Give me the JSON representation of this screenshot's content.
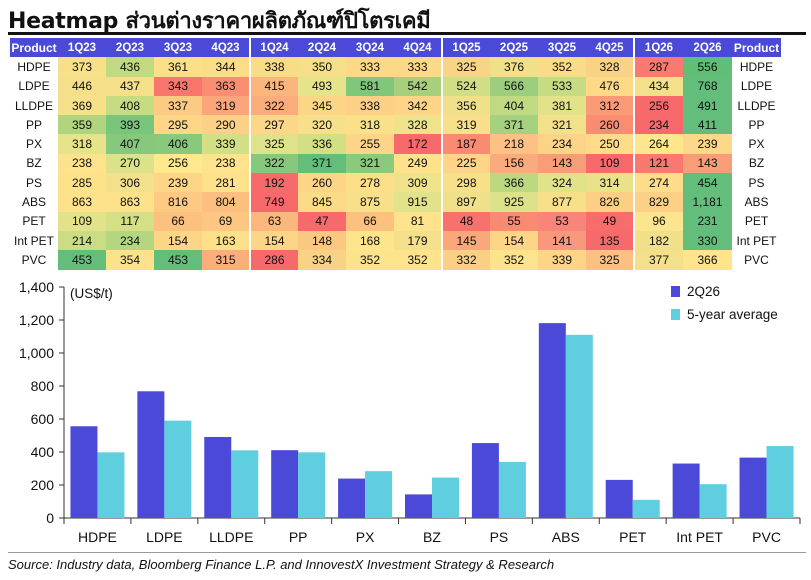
{
  "title": "Heatmap ส่วนต่างราคาผลิตภัณฑ์ปิโตรเคมี",
  "heatmap": {
    "product_header": "Product",
    "quarters": [
      "1Q23",
      "2Q23",
      "3Q23",
      "4Q23",
      "1Q24",
      "2Q24",
      "3Q24",
      "4Q24",
      "1Q25",
      "2Q25",
      "3Q25",
      "4Q25",
      "1Q26",
      "2Q26"
    ],
    "rows": [
      {
        "product": "HDPE",
        "values": [
          "373",
          "436",
          "361",
          "344",
          "338",
          "350",
          "333",
          "333",
          "325",
          "376",
          "352",
          "328",
          "287",
          "556"
        ],
        "colors": [
          "#f7e08a",
          "#c1d980",
          "#f9e089",
          "#fbdc87",
          "#f9dc88",
          "#f6df89",
          "#fcd986",
          "#fcd986",
          "#f8d586",
          "#f1e08a",
          "#f9dc88",
          "#f8d285",
          "#f97a6e",
          "#5ebf75"
        ]
      },
      {
        "product": "LDPE",
        "values": [
          "446",
          "437",
          "343",
          "363",
          "415",
          "493",
          "581",
          "542",
          "524",
          "566",
          "533",
          "476",
          "434",
          "768"
        ],
        "colors": [
          "#f5df89",
          "#f6df89",
          "#f8766c",
          "#fa8e72",
          "#fcb67d",
          "#e6e38b",
          "#7fc77b",
          "#a7d07d",
          "#d2de84",
          "#9cce7e",
          "#c6dc82",
          "#fdd988",
          "#f3e08a",
          "#63be7b"
        ]
      },
      {
        "product": "LLDPE",
        "values": [
          "369",
          "408",
          "337",
          "319",
          "322",
          "345",
          "338",
          "342",
          "356",
          "404",
          "381",
          "312",
          "256",
          "491"
        ],
        "colors": [
          "#f6e08a",
          "#c7dc82",
          "#fbca83",
          "#fba57a",
          "#fbac7c",
          "#fcd686",
          "#fcd086",
          "#fed588",
          "#f1e08a",
          "#bfda81",
          "#e2e28a",
          "#fa9b76",
          "#f8696b",
          "#63be7b"
        ]
      },
      {
        "product": "PP",
        "values": [
          "359",
          "393",
          "295",
          "290",
          "297",
          "320",
          "318",
          "328",
          "319",
          "371",
          "321",
          "260",
          "234",
          "411"
        ],
        "colors": [
          "#b1d57f",
          "#79c57b",
          "#fdd688",
          "#fdd087",
          "#fdd788",
          "#f6e08a",
          "#f9e089",
          "#eee28a",
          "#f9df89",
          "#a5d27f",
          "#f3e08a",
          "#fa8c72",
          "#f8696b",
          "#63be7b"
        ]
      },
      {
        "product": "PX",
        "values": [
          "318",
          "407",
          "406",
          "339",
          "325",
          "336",
          "255",
          "172",
          "187",
          "218",
          "234",
          "250",
          "264",
          "239"
        ],
        "colors": [
          "#e7e38b",
          "#87c97c",
          "#88c97c",
          "#d2df85",
          "#dee28a",
          "#d3df85",
          "#fed488",
          "#f8696b",
          "#fa8a72",
          "#fdc183",
          "#fdd387",
          "#fddb89",
          "#fde68b",
          "#fdd888"
        ]
      },
      {
        "product": "BZ",
        "values": [
          "238",
          "270",
          "256",
          "238",
          "322",
          "371",
          "321",
          "249",
          "225",
          "156",
          "143",
          "109",
          "121",
          "143"
        ],
        "colors": [
          "#fee38c",
          "#dce28a",
          "#fee98c",
          "#fee38c",
          "#87c97c",
          "#63be7b",
          "#8bca7c",
          "#fde18b",
          "#fed588",
          "#faaa7c",
          "#f99d78",
          "#f8696b",
          "#f9786f",
          "#f99d78"
        ]
      },
      {
        "product": "PS",
        "values": [
          "285",
          "306",
          "239",
          "281",
          "192",
          "260",
          "278",
          "309",
          "298",
          "366",
          "324",
          "314",
          "274",
          "454"
        ],
        "colors": [
          "#fde28a",
          "#f2e08a",
          "#fdd587",
          "#fde28a",
          "#f8696b",
          "#fdd587",
          "#fcdf89",
          "#eee28a",
          "#f8e08a",
          "#bcd980",
          "#e0e38a",
          "#e9e28a",
          "#fddd8a",
          "#63be7b"
        ]
      },
      {
        "product": "ABS",
        "values": [
          "863",
          "863",
          "816",
          "804",
          "749",
          "845",
          "875",
          "915",
          "897",
          "925",
          "877",
          "826",
          "829",
          "1,181"
        ],
        "colors": [
          "#fde28b",
          "#fde28b",
          "#fdc983",
          "#fcbf80",
          "#f8696b",
          "#fcdb88",
          "#f8e08a",
          "#e2e28a",
          "#f0e08a",
          "#dce28a",
          "#f8e08a",
          "#fccf85",
          "#fcd186",
          "#63be7b"
        ]
      },
      {
        "product": "PET",
        "values": [
          "109",
          "117",
          "66",
          "69",
          "63",
          "47",
          "66",
          "81",
          "48",
          "55",
          "53",
          "49",
          "96",
          "231"
        ],
        "colors": [
          "#e2e28a",
          "#d5df86",
          "#fcc17f",
          "#fdc783",
          "#fcb77d",
          "#f8696b",
          "#fcc17f",
          "#fde38b",
          "#f8716d",
          "#fa8b72",
          "#f9857a",
          "#f86c6c",
          "#fce58c",
          "#63be7b"
        ]
      },
      {
        "product": "Int PET",
        "values": [
          "214",
          "234",
          "154",
          "163",
          "154",
          "148",
          "168",
          "179",
          "145",
          "154",
          "141",
          "135",
          "182",
          "330"
        ],
        "colors": [
          "#cbdd83",
          "#b3d67f",
          "#fcd586",
          "#fde18a",
          "#fcd586",
          "#fbc881",
          "#fee48b",
          "#f4e08a",
          "#faa77b",
          "#fcd586",
          "#f9987a",
          "#f8696b",
          "#f0e08a",
          "#63be7b"
        ]
      },
      {
        "product": "PVC",
        "values": [
          "453",
          "354",
          "453",
          "315",
          "286",
          "334",
          "352",
          "352",
          "332",
          "352",
          "339",
          "325",
          "377",
          "366"
        ],
        "colors": [
          "#63be7b",
          "#fce38b",
          "#63be7b",
          "#fbad7c",
          "#f8696b",
          "#f9d385",
          "#fde38b",
          "#fde38b",
          "#fad085",
          "#fde38b",
          "#fcd686",
          "#fac181",
          "#f4e08a",
          "#fee58b"
        ]
      }
    ]
  },
  "chart_data": {
    "type": "bar",
    "ylabel": "(US$/t)",
    "ylim": [
      0,
      1400
    ],
    "yticks": [
      "0",
      "200",
      "400",
      "600",
      "800",
      "1,000",
      "1,200",
      "1,400"
    ],
    "ytick_values": [
      0,
      200,
      400,
      600,
      800,
      1000,
      1200,
      1400
    ],
    "grid": false,
    "legend_position": "top-right",
    "categories": [
      "HDPE",
      "LDPE",
      "LLDPE",
      "PP",
      "PX",
      "BZ",
      "PS",
      "ABS",
      "PET",
      "Int PET",
      "PVC"
    ],
    "series": [
      {
        "name": "2Q26",
        "color": "#4b49d8",
        "values": [
          556,
          768,
          491,
          411,
          239,
          143,
          454,
          1181,
          231,
          330,
          366
        ]
      },
      {
        "name": "5-year average",
        "color": "#5fcfe0",
        "values": [
          398,
          590,
          410,
          398,
          284,
          245,
          340,
          1110,
          110,
          205,
          436
        ]
      }
    ]
  },
  "source": "Source: Industry data, Bloomberg Finance L.P. and InnovestX Investment Strategy & Research"
}
